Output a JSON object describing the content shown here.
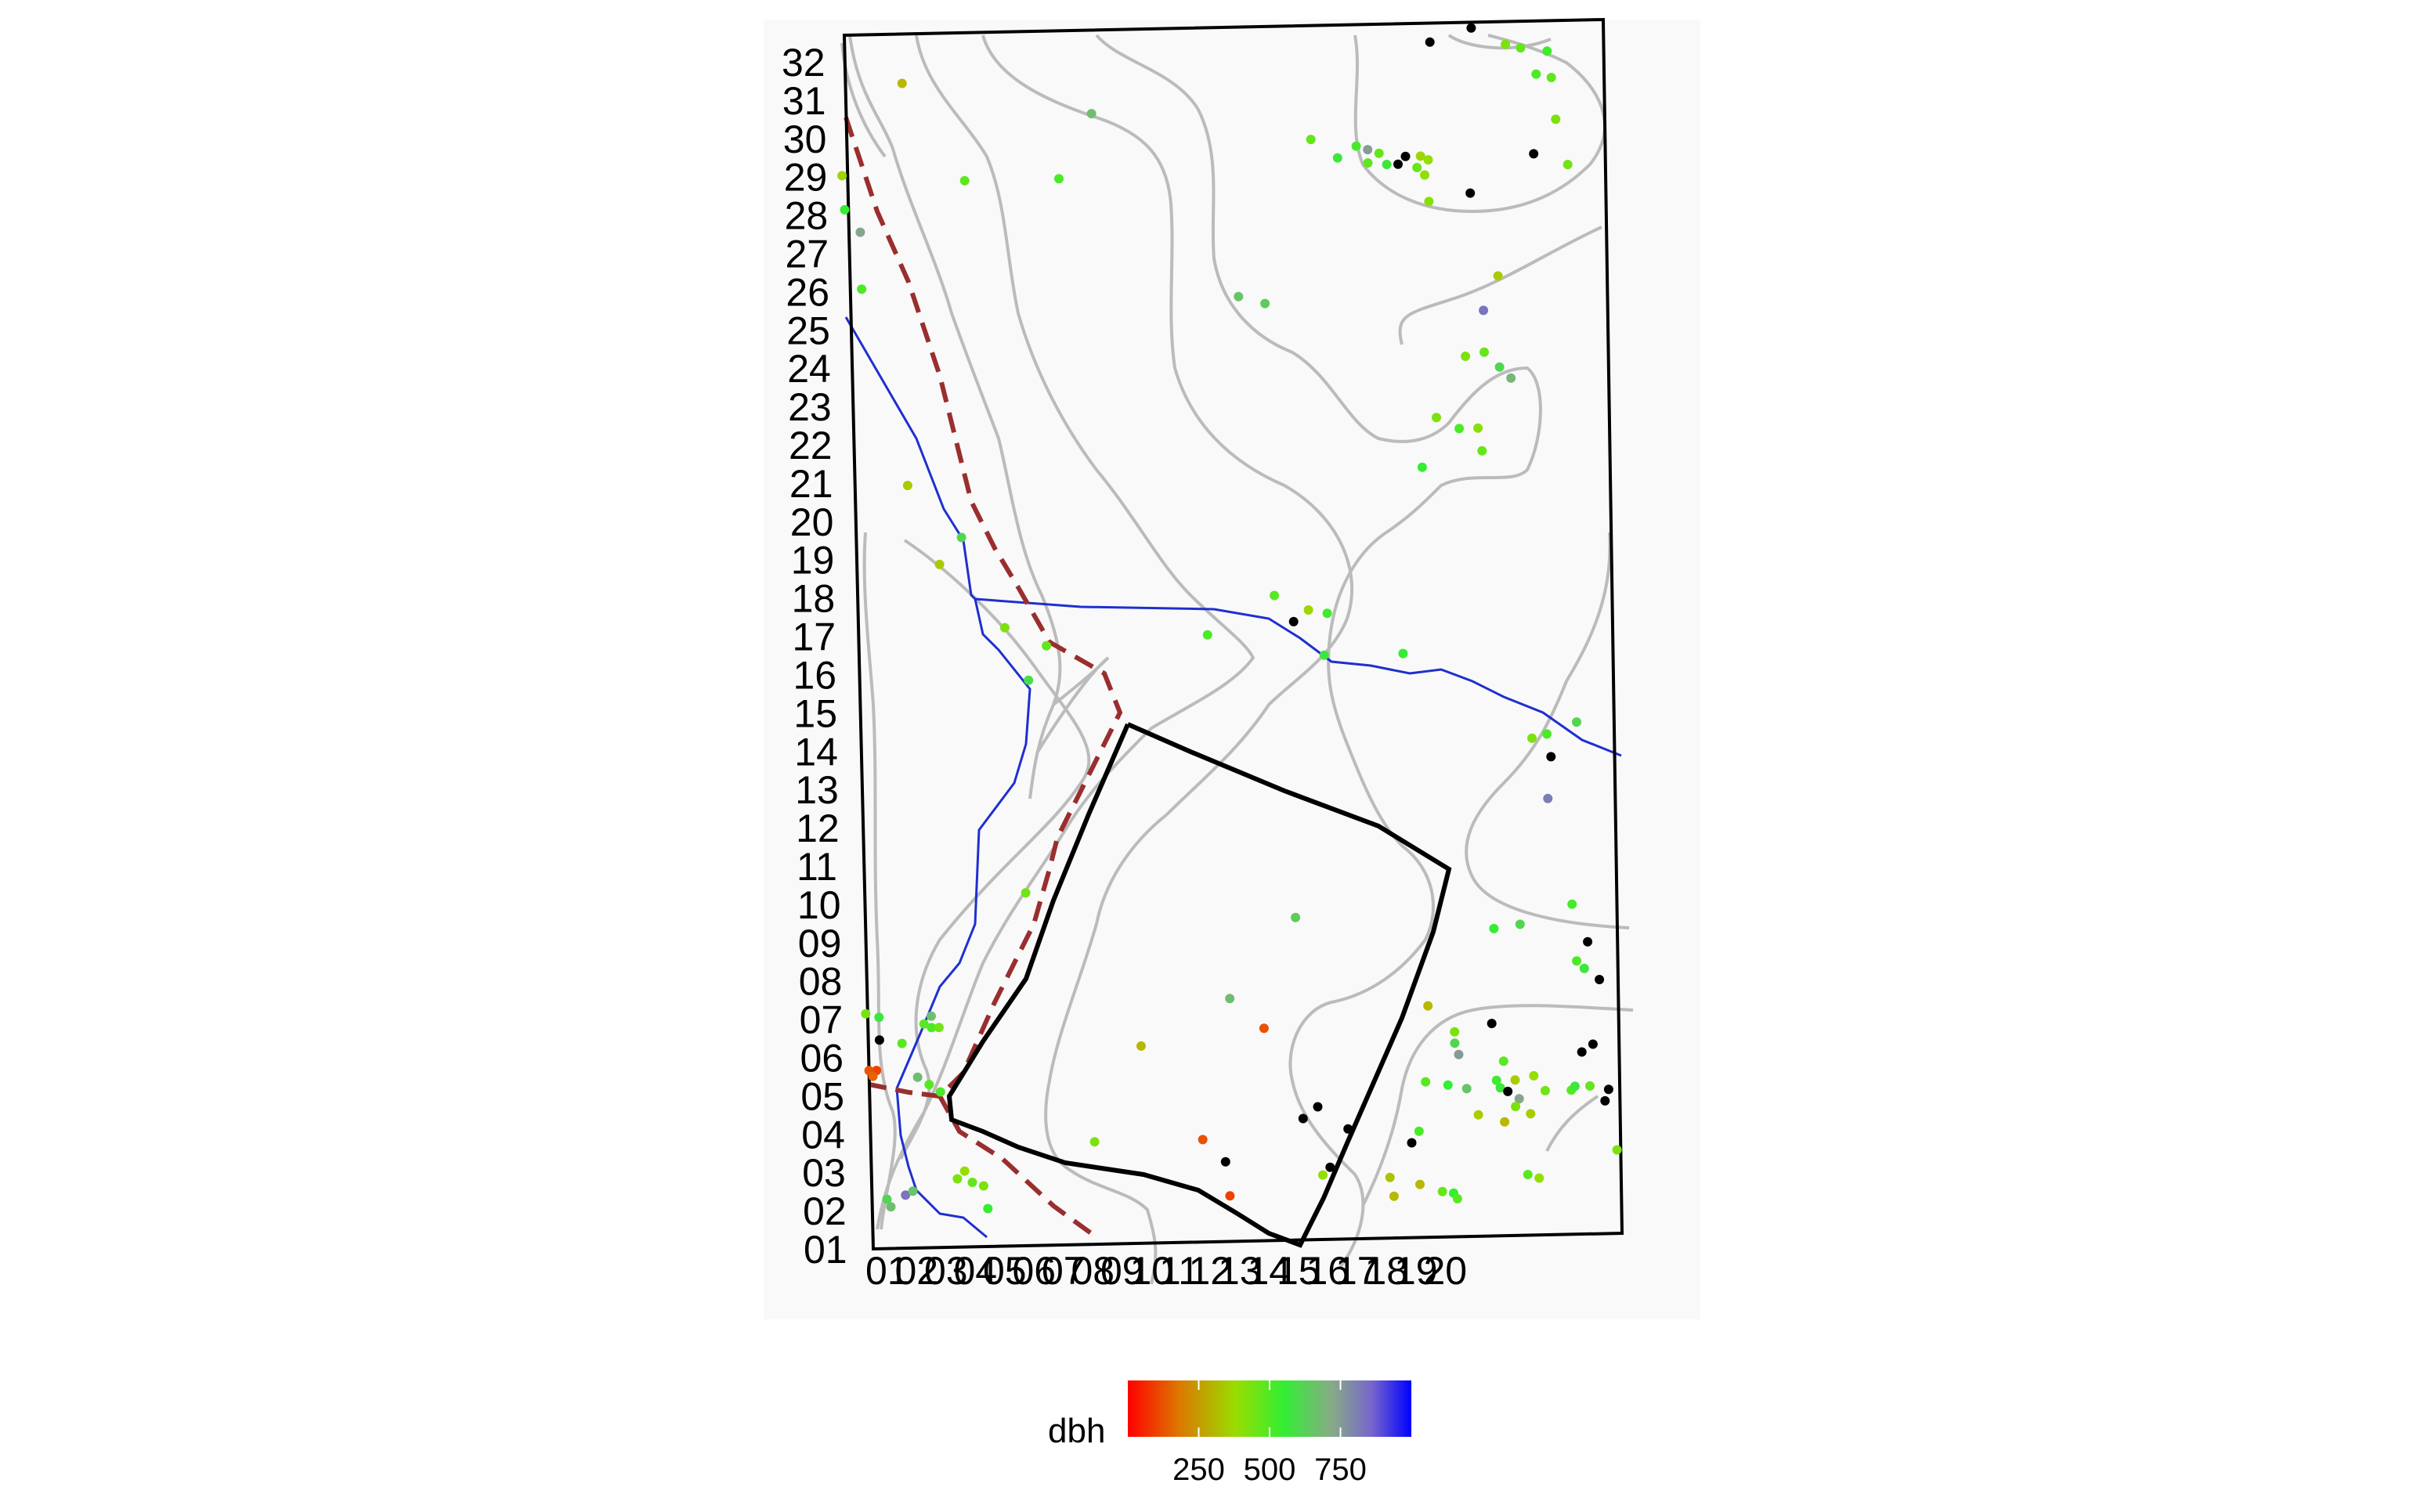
{
  "chart_data": {
    "type": "scatter",
    "title": "",
    "xlabel": "",
    "ylabel": "",
    "grid": false,
    "x_ticks": [
      "01",
      "02",
      "03",
      "04",
      "05",
      "06",
      "07",
      "08",
      "09",
      "10",
      "11",
      "12",
      "13",
      "14",
      "15",
      "16",
      "17",
      "18",
      "19",
      "20"
    ],
    "y_ticks": [
      "01",
      "02",
      "03",
      "04",
      "05",
      "06",
      "07",
      "08",
      "09",
      "10",
      "11",
      "12",
      "13",
      "14",
      "15",
      "16",
      "17",
      "18",
      "19",
      "20",
      "21",
      "22",
      "23",
      "24",
      "25",
      "26",
      "27",
      "28",
      "29",
      "30",
      "31",
      "32"
    ],
    "xlim": [
      0.5,
      20.6
    ],
    "ylim": [
      0.5,
      32.5
    ],
    "legend": {
      "title": "dbh",
      "placement": "bottom",
      "breaks": [
        "250",
        "500",
        "750"
      ],
      "range": [
        0,
        1000
      ],
      "colors": [
        "#ff0000",
        "#dd8800",
        "#99dd00",
        "#33ee33",
        "#88aa88",
        "#7766cc",
        "#0000ff"
      ]
    },
    "colors": {
      "plot_bg": "#f9f9f9",
      "contour": "#bbbbbb",
      "stream": "#1f2fd0",
      "trail": "#9a2e2e",
      "outline": "#000000",
      "high_dbh": "#000000"
    },
    "points": [
      [
        17.1,
        32.35,
        1100
      ],
      [
        16.0,
        32.0,
        1100
      ],
      [
        18.0,
        31.9,
        380
      ],
      [
        18.4,
        31.8,
        420
      ],
      [
        19.1,
        31.7,
        480
      ],
      [
        18.8,
        31.1,
        460
      ],
      [
        19.2,
        31.0,
        430
      ],
      [
        7.0,
        30.3,
        620
      ],
      [
        2.0,
        31.2,
        260
      ],
      [
        19.3,
        29.9,
        380
      ],
      [
        12.8,
        29.5,
        420
      ],
      [
        14.0,
        29.3,
        470
      ],
      [
        14.3,
        29.2,
        700
      ],
      [
        14.6,
        29.1,
        420
      ],
      [
        15.3,
        29.0,
        1100
      ],
      [
        15.7,
        29.0,
        320
      ],
      [
        15.9,
        28.9,
        340
      ],
      [
        18.7,
        29.0,
        1100
      ],
      [
        13.5,
        29.0,
        520
      ],
      [
        14.3,
        28.85,
        430
      ],
      [
        14.8,
        28.8,
        520
      ],
      [
        15.1,
        28.8,
        1100
      ],
      [
        15.6,
        28.7,
        420
      ],
      [
        15.8,
        28.5,
        350
      ],
      [
        19.6,
        28.7,
        400
      ],
      [
        3.6,
        28.6,
        430
      ],
      [
        6.1,
        28.6,
        460
      ],
      [
        0.35,
        28.8,
        320
      ],
      [
        17.0,
        28.0,
        1100
      ],
      [
        15.9,
        27.8,
        360
      ],
      [
        0.4,
        27.9,
        500
      ],
      [
        0.8,
        27.3,
        680
      ],
      [
        17.7,
        25.8,
        300
      ],
      [
        0.8,
        25.8,
        460
      ],
      [
        10.8,
        25.4,
        600
      ],
      [
        11.5,
        25.2,
        580
      ],
      [
        17.3,
        24.9,
        800
      ],
      [
        16.8,
        23.7,
        380
      ],
      [
        17.3,
        23.8,
        420
      ],
      [
        17.7,
        23.4,
        560
      ],
      [
        18.0,
        23.1,
        640
      ],
      [
        16.0,
        22.1,
        380
      ],
      [
        16.6,
        21.8,
        460
      ],
      [
        17.1,
        21.8,
        360
      ],
      [
        17.2,
        21.2,
        420
      ],
      [
        15.6,
        20.8,
        500
      ],
      [
        1.9,
        20.6,
        300
      ],
      [
        3.3,
        19.2,
        560
      ],
      [
        2.7,
        18.5,
        300
      ],
      [
        4.4,
        16.8,
        380
      ],
      [
        11.6,
        17.5,
        440
      ],
      [
        12.5,
        17.1,
        320
      ],
      [
        9.8,
        16.5,
        460
      ],
      [
        12.1,
        16.8,
        1000
      ],
      [
        13.0,
        17.0,
        480
      ],
      [
        12.9,
        15.9,
        520
      ],
      [
        15.0,
        15.9,
        500
      ],
      [
        5.5,
        16.3,
        420
      ],
      [
        5.0,
        15.4,
        540
      ],
      [
        18.4,
        13.6,
        380
      ],
      [
        18.8,
        13.7,
        460
      ],
      [
        19.6,
        14.0,
        560
      ],
      [
        18.9,
        13.1,
        1000
      ],
      [
        18.8,
        12.0,
        780
      ],
      [
        4.8,
        9.8,
        400
      ],
      [
        12.0,
        9.0,
        580
      ],
      [
        17.3,
        8.6,
        500
      ],
      [
        18.0,
        8.7,
        560
      ],
      [
        19.4,
        9.2,
        470
      ],
      [
        19.8,
        8.2,
        1100
      ],
      [
        19.5,
        7.7,
        460
      ],
      [
        19.7,
        7.5,
        520
      ],
      [
        20.1,
        7.2,
        1100
      ],
      [
        10.2,
        6.9,
        620
      ],
      [
        2.2,
        6.6,
        620
      ],
      [
        2.0,
        6.4,
        440
      ],
      [
        2.2,
        6.3,
        460
      ],
      [
        2.4,
        6.3,
        400
      ],
      [
        0.45,
        6.7,
        390
      ],
      [
        0.8,
        6.6,
        520
      ],
      [
        0.8,
        6.0,
        1100
      ],
      [
        15.5,
        6.6,
        260
      ],
      [
        16.2,
        5.9,
        380
      ],
      [
        17.2,
        6.1,
        1100
      ],
      [
        11.1,
        6.1,
        100
      ],
      [
        7.8,
        5.7,
        260
      ],
      [
        1.4,
        5.9,
        440
      ],
      [
        16.2,
        5.6,
        560
      ],
      [
        16.3,
        5.3,
        700
      ],
      [
        0.7,
        5.2,
        80
      ],
      [
        0.5,
        5.2,
        100
      ],
      [
        0.6,
        5.05,
        120
      ],
      [
        1.8,
        5.0,
        620
      ],
      [
        2.1,
        4.8,
        440
      ],
      [
        2.4,
        4.6,
        460
      ],
      [
        17.5,
        5.1,
        440
      ],
      [
        17.8,
        4.6,
        300
      ],
      [
        18.3,
        4.7,
        340
      ],
      [
        19.6,
        5.3,
        1100
      ],
      [
        19.9,
        5.5,
        1100
      ],
      [
        15.4,
        4.6,
        440
      ],
      [
        16.0,
        4.5,
        500
      ],
      [
        16.5,
        4.4,
        600
      ],
      [
        17.3,
        4.6,
        480
      ],
      [
        17.4,
        4.4,
        520
      ],
      [
        17.6,
        4.3,
        1100
      ],
      [
        17.9,
        4.1,
        680
      ],
      [
        18.6,
        4.3,
        400
      ],
      [
        19.3,
        4.3,
        440
      ],
      [
        19.4,
        4.4,
        520
      ],
      [
        19.8,
        4.4,
        420
      ],
      [
        20.3,
        4.3,
        1100
      ],
      [
        20.2,
        4.0,
        1100
      ],
      [
        12.5,
        4.0,
        1100
      ],
      [
        12.1,
        3.7,
        1100
      ],
      [
        16.8,
        3.7,
        300
      ],
      [
        17.5,
        3.5,
        260
      ],
      [
        17.8,
        3.9,
        380
      ],
      [
        18.2,
        3.7,
        300
      ],
      [
        13.3,
        3.4,
        1100
      ],
      [
        15.2,
        3.3,
        460
      ],
      [
        15.0,
        3.0,
        1100
      ],
      [
        9.4,
        3.2,
        100
      ],
      [
        10.0,
        2.6,
        1100
      ],
      [
        6.5,
        3.2,
        380
      ],
      [
        3.0,
        2.5,
        340
      ],
      [
        2.8,
        2.3,
        380
      ],
      [
        3.2,
        2.2,
        420
      ],
      [
        3.5,
        2.1,
        380
      ],
      [
        12.8,
        2.4,
        1100
      ],
      [
        12.6,
        2.2,
        340
      ],
      [
        14.4,
        2.1,
        280
      ],
      [
        15.2,
        1.9,
        260
      ],
      [
        15.8,
        1.7,
        420
      ],
      [
        16.1,
        1.65,
        500
      ],
      [
        16.2,
        1.5,
        440
      ],
      [
        18.1,
        2.1,
        440
      ],
      [
        18.4,
        2.0,
        340
      ],
      [
        10.1,
        1.7,
        80
      ],
      [
        14.5,
        1.6,
        260
      ],
      [
        0.9,
        1.8,
        560
      ],
      [
        1.0,
        1.6,
        620
      ],
      [
        1.4,
        1.9,
        800
      ],
      [
        1.6,
        2.0,
        600
      ],
      [
        3.6,
        1.5,
        500
      ],
      [
        20.5,
        2.7,
        380
      ]
    ]
  }
}
